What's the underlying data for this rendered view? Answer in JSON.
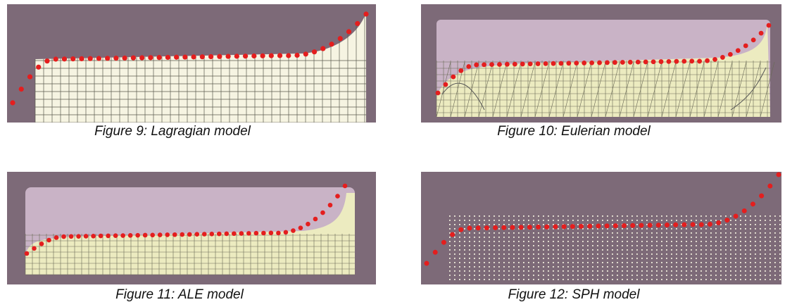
{
  "figures": [
    {
      "id": "lagrangian",
      "caption": "Figure 9: Lagragian model"
    },
    {
      "id": "eulerian",
      "caption": "Figure 10: Eulerian model"
    },
    {
      "id": "ale",
      "caption": "Figure 11: ALE model"
    },
    {
      "id": "sph",
      "caption": "Figure 12: SPH model"
    }
  ],
  "colors": {
    "background": "#7d6a78",
    "material": "#f6f4e2",
    "material_yellow": "#ecebc0",
    "mesh_line": "#5a5a4e",
    "void_region": "#c9b3c6",
    "experimental_dots": "#e41e1e"
  }
}
